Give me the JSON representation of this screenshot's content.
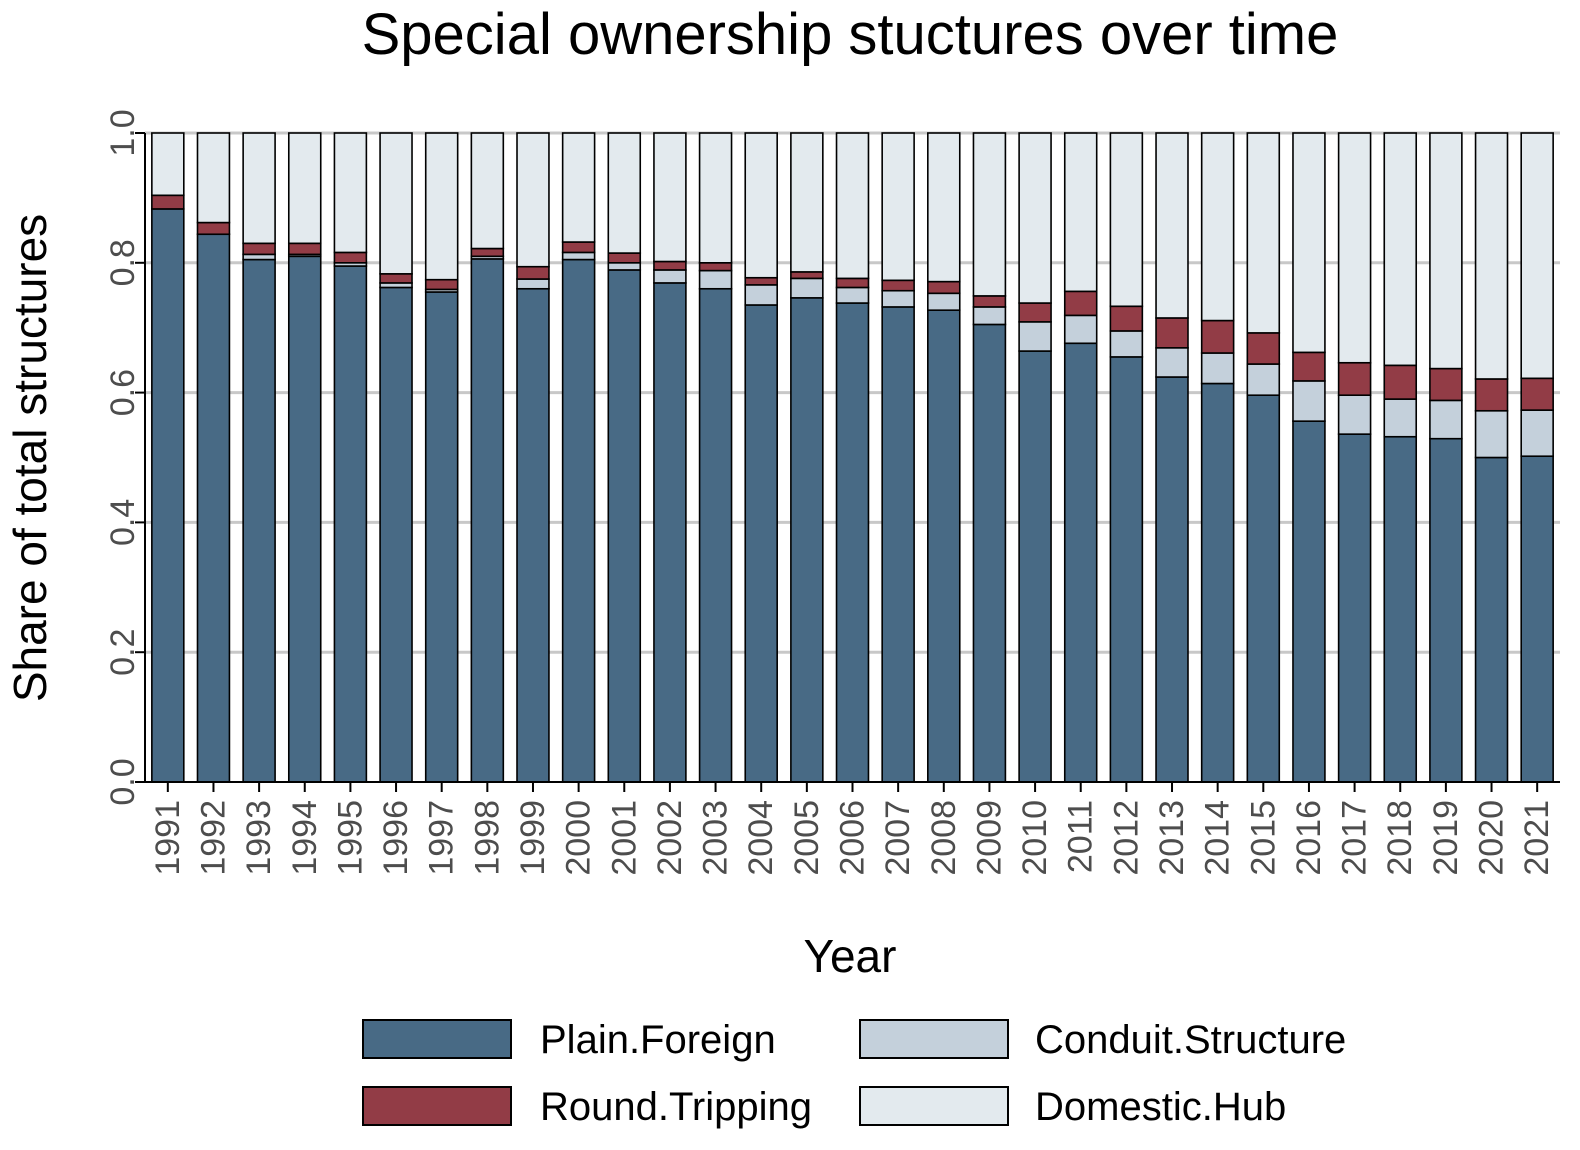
{
  "chart_data": {
    "type": "bar",
    "stacked": true,
    "title": "Special ownership stuctures over time",
    "xlabel": "Year",
    "ylabel": "Share of total structures",
    "ylim": [
      0,
      1
    ],
    "yticks": [
      "0.0",
      "0.2",
      "0.4",
      "0.6",
      "0.8",
      "1.0"
    ],
    "grid": "horizontal",
    "legend_position": "bottom",
    "categories": [
      "1991",
      "1992",
      "1993",
      "1994",
      "1995",
      "1996",
      "1997",
      "1998",
      "1999",
      "2000",
      "2001",
      "2002",
      "2003",
      "2004",
      "2005",
      "2006",
      "2007",
      "2008",
      "2009",
      "2010",
      "2011",
      "2012",
      "2013",
      "2014",
      "2015",
      "2016",
      "2017",
      "2018",
      "2019",
      "2020",
      "2021"
    ],
    "series": [
      {
        "name": "Plain.Foreign",
        "color": "#486a85",
        "values": [
          0.883,
          0.844,
          0.805,
          0.81,
          0.795,
          0.762,
          0.755,
          0.806,
          0.76,
          0.805,
          0.789,
          0.769,
          0.76,
          0.735,
          0.746,
          0.738,
          0.732,
          0.727,
          0.705,
          0.664,
          0.676,
          0.655,
          0.624,
          0.614,
          0.596,
          0.556,
          0.536,
          0.532,
          0.529,
          0.5,
          0.502
        ]
      },
      {
        "name": "Conduit.Structure",
        "color": "#c4d0db",
        "values": [
          0.0,
          0.0,
          0.008,
          0.003,
          0.005,
          0.007,
          0.004,
          0.004,
          0.015,
          0.011,
          0.011,
          0.02,
          0.028,
          0.031,
          0.03,
          0.024,
          0.025,
          0.026,
          0.027,
          0.045,
          0.043,
          0.04,
          0.045,
          0.047,
          0.048,
          0.062,
          0.06,
          0.058,
          0.059,
          0.072,
          0.071
        ]
      },
      {
        "name": "Round.Tripping",
        "color": "#923c46",
        "values": [
          0.021,
          0.018,
          0.017,
          0.017,
          0.016,
          0.014,
          0.015,
          0.012,
          0.019,
          0.016,
          0.015,
          0.013,
          0.012,
          0.011,
          0.01,
          0.014,
          0.016,
          0.018,
          0.017,
          0.029,
          0.037,
          0.038,
          0.046,
          0.05,
          0.048,
          0.044,
          0.05,
          0.052,
          0.049,
          0.049,
          0.049
        ]
      },
      {
        "name": "Domestic.Hub",
        "color": "#e3eaee",
        "values": [
          0.096,
          0.138,
          0.17,
          0.17,
          0.184,
          0.217,
          0.226,
          0.178,
          0.206,
          0.168,
          0.185,
          0.198,
          0.2,
          0.223,
          0.214,
          0.224,
          0.227,
          0.229,
          0.251,
          0.262,
          0.244,
          0.267,
          0.285,
          0.289,
          0.308,
          0.338,
          0.354,
          0.358,
          0.363,
          0.379,
          0.378
        ]
      }
    ]
  }
}
